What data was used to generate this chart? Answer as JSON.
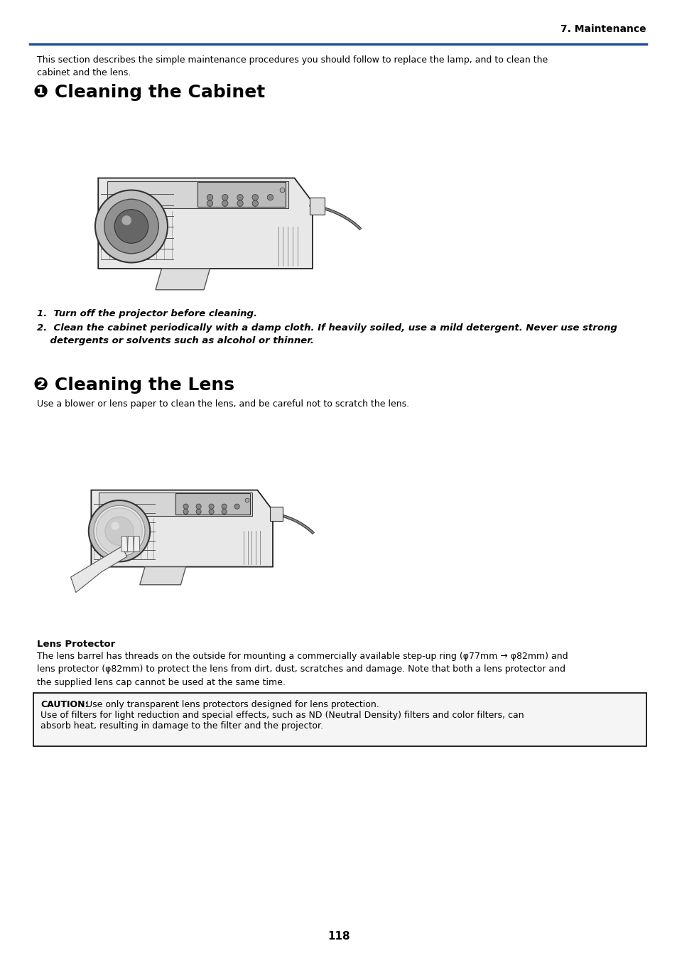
{
  "page_width": 9.54,
  "page_height": 13.48,
  "bg_color": "#ffffff",
  "header_text": "7. Maintenance",
  "header_line_color": "#1e4d9b",
  "page_number": "118",
  "intro_text": "This section describes the simple maintenance procedures you should follow to replace the lamp, and to clean the\ncabinet and the lens.",
  "section1_title": "❶ Cleaning the Cabinet",
  "item1": "1.  Turn off the projector before cleaning.",
  "item2": "2.  Clean the cabinet periodically with a damp cloth. If heavily soiled, use a mild detergent. Never use strong\n    detergents or solvents such as alcohol or thinner.",
  "section2_title": "❷ Cleaning the Lens",
  "section2_intro": "Use a blower or lens paper to clean the lens, and be careful not to scratch the lens.",
  "lp_title": "Lens Protector",
  "lp_body": "The lens barrel has threads on the outside for mounting a commercially available step-up ring (φ77mm → φ82mm) and\nlens protector (φ82mm) to protect the lens from dirt, dust, scratches and damage. Note that both a lens protector and\nthe supplied lens cap cannot be used at the same time.",
  "caution_label": "CAUTION:",
  "caution_line1": " Use only transparent lens protectors designed for lens protection.",
  "caution_line2": "Use of filters for light reduction and special effects, such as ND (Neutral Density) filters and color filters, can",
  "caution_line3": "absorb heat, resulting in damage to the filter and the projector."
}
